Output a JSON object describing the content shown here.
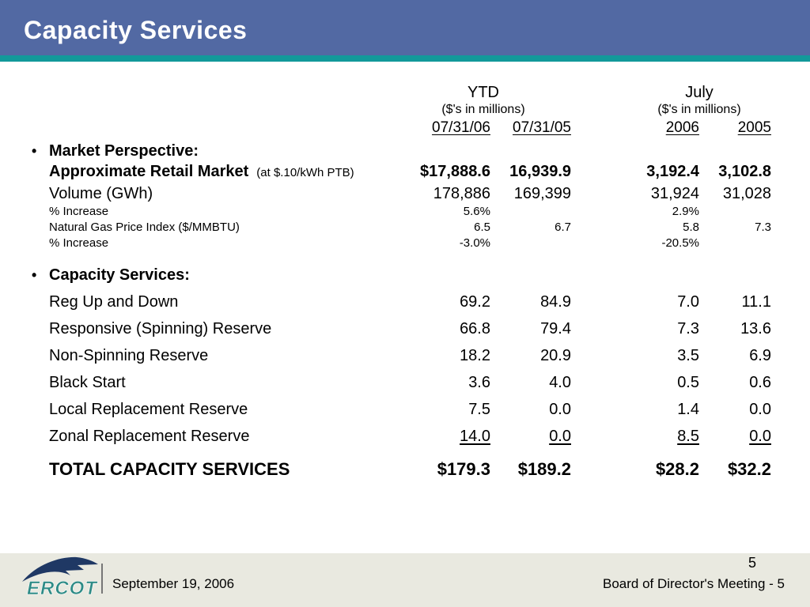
{
  "header": {
    "title": "Capacity Services"
  },
  "columns": {
    "group1": {
      "label": "YTD",
      "sub": "($'s in millions)",
      "dates": [
        "07/31/06",
        "07/31/05"
      ]
    },
    "group2": {
      "label": "July",
      "sub": "($'s in millions)",
      "dates": [
        "2006",
        "2005"
      ]
    }
  },
  "table": {
    "rows": [
      {
        "kind": "section",
        "cls": "",
        "label": "Market Perspective:"
      },
      {
        "kind": "data",
        "cls": "bold-row",
        "label": "Approximate Retail Market",
        "note": "(at $.10/kWh PTB)",
        "values": [
          "$17,888.6",
          "16,939.9",
          "3,192.4",
          "3,102.8"
        ]
      },
      {
        "kind": "data",
        "cls": "",
        "label": "Volume (GWh)",
        "values": [
          "178,886",
          "169,399",
          "31,924",
          "31,028"
        ]
      },
      {
        "kind": "data",
        "cls": "small",
        "label": "% Increase",
        "values": [
          "5.6%",
          "",
          "2.9%",
          ""
        ]
      },
      {
        "kind": "data",
        "cls": "small",
        "label": "Natural Gas Price Index ($/MMBTU)",
        "values": [
          "6.5",
          "6.7",
          "5.8",
          "7.3"
        ]
      },
      {
        "kind": "data",
        "cls": "small",
        "label": "% Increase",
        "values": [
          "-3.0%",
          "",
          "-20.5%",
          ""
        ]
      },
      {
        "kind": "section",
        "cls": "gap",
        "label": "Capacity Services:"
      },
      {
        "kind": "data",
        "cls": "spaced",
        "label": "Reg Up and Down",
        "values": [
          "69.2",
          "84.9",
          "7.0",
          "11.1"
        ]
      },
      {
        "kind": "data",
        "cls": "spaced",
        "label": "Responsive (Spinning) Reserve",
        "values": [
          "66.8",
          "79.4",
          "7.3",
          "13.6"
        ]
      },
      {
        "kind": "data",
        "cls": "spaced",
        "label": "Non-Spinning Reserve",
        "values": [
          "18.2",
          "20.9",
          "3.5",
          "6.9"
        ]
      },
      {
        "kind": "data",
        "cls": "spaced",
        "label": "Black Start",
        "values": [
          "3.6",
          "4.0",
          "0.5",
          "0.6"
        ]
      },
      {
        "kind": "data",
        "cls": "spaced",
        "label": "Local Replacement Reserve",
        "values": [
          "7.5",
          "0.0",
          "1.4",
          "0.0"
        ]
      },
      {
        "kind": "data",
        "cls": "spaced underline-values",
        "label": "Zonal Replacement Reserve",
        "values": [
          "14.0",
          "0.0",
          "8.5",
          "0.0"
        ]
      },
      {
        "kind": "total",
        "cls": "",
        "label": "TOTAL CAPACITY SERVICES",
        "values": [
          "$179.3",
          "$189.2",
          "$28.2",
          "$32.2"
        ]
      }
    ]
  },
  "footer": {
    "logo_text": "ERCOT",
    "date": "September 19, 2006",
    "page_number": "5",
    "meeting_label": "Board of Director's Meeting - 5"
  },
  "colors": {
    "header_blue": "#5269A3",
    "accent_teal": "#12999A",
    "footer_beige": "#E9E9E0",
    "logo_teal": "#2E8B86",
    "logo_navy": "#1F3864"
  }
}
